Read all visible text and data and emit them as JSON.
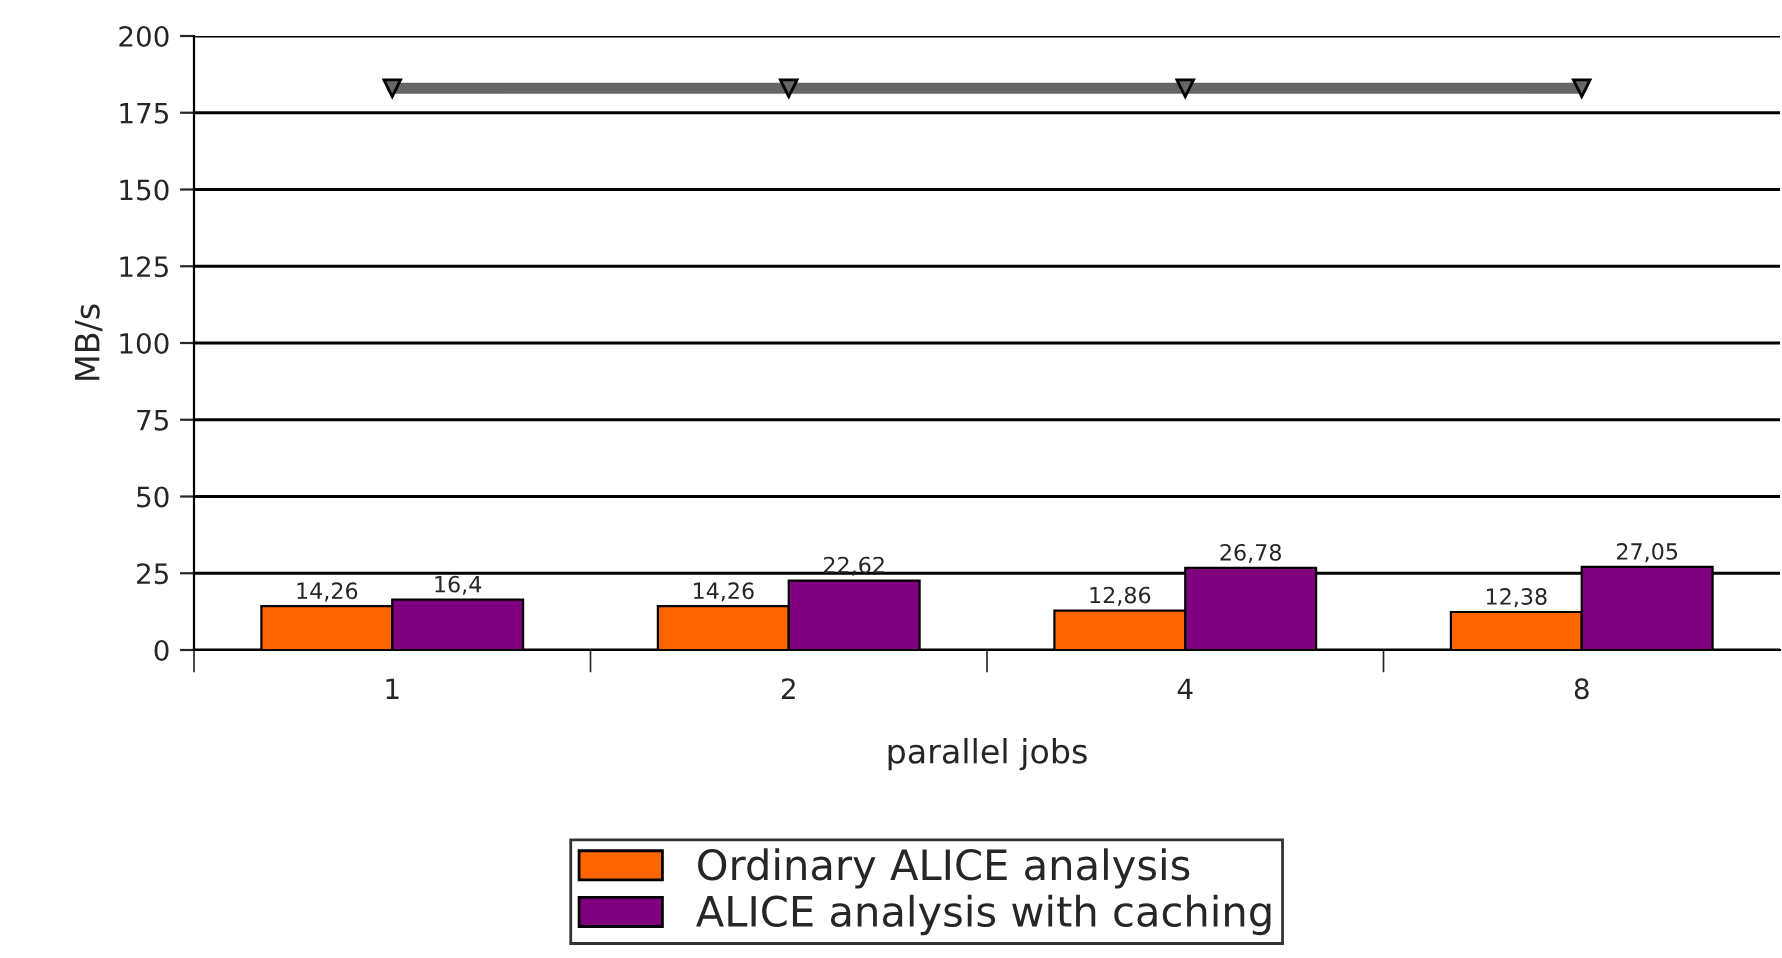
{
  "chart_data": {
    "type": "bar",
    "xlabel": "parallel jobs",
    "ylabel": "MB/s",
    "categories": [
      "1",
      "2",
      "4",
      "8"
    ],
    "ylim": [
      0,
      200
    ],
    "yticks": [
      0,
      25,
      50,
      75,
      100,
      125,
      150,
      175,
      200
    ],
    "grid": "y",
    "legend": "bottom",
    "series": [
      {
        "name": "Ordinary ALICE analysis",
        "color": "#ff6600",
        "values": [
          14.26,
          14.26,
          12.86,
          12.38
        ],
        "value_labels": [
          "14,26",
          "14,26",
          "12,86",
          "12,38"
        ]
      },
      {
        "name": "ALICE analysis with caching",
        "color": "#800080",
        "values": [
          16.4,
          22.62,
          26.78,
          27.05
        ],
        "value_labels": [
          "16,4",
          "22,62",
          "26,78",
          "27,05"
        ]
      },
      {
        "type": "line",
        "color": "#666666",
        "values": [
          183,
          183,
          183,
          183
        ],
        "marker": "triangle"
      }
    ]
  }
}
